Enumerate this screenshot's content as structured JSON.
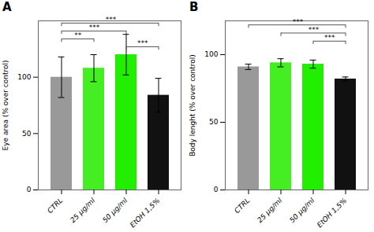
{
  "chart_data": [
    {
      "type": "bar",
      "title": "A",
      "ylabel": "Eye area (% over control)",
      "categories": [
        "CTRL",
        "25 μg/ml",
        "50 μg/ml",
        "EtOH 1,5%"
      ],
      "values": [
        100,
        108,
        120,
        84
      ],
      "errors": [
        18,
        12,
        18,
        15
      ],
      "colors": [
        "#999999",
        "#44ee22",
        "#22ee00",
        "#111111"
      ],
      "ylim": [
        0,
        150
      ],
      "yticks": [
        0,
        50,
        100
      ],
      "grid": false,
      "significance": [
        {
          "bars": [
            0,
            3
          ],
          "label": "***",
          "height": 148
        },
        {
          "bars": [
            0,
            2
          ],
          "label": "***",
          "height": 141
        },
        {
          "bars": [
            0,
            1
          ],
          "label": "**",
          "height": 134
        },
        {
          "bars": [
            2,
            3
          ],
          "label": "***",
          "height": 127
        }
      ]
    },
    {
      "type": "bar",
      "title": "B",
      "ylabel": "Body lenght (% over control)",
      "categories": [
        "CTRL",
        "25 μg/ml",
        "50 μg/ml",
        "EtOH 1,5%"
      ],
      "values": [
        91,
        94,
        93,
        82
      ],
      "errors": [
        2,
        3,
        3,
        1.5
      ],
      "colors": [
        "#999999",
        "#44ee22",
        "#22ee00",
        "#111111"
      ],
      "ylim": [
        0,
        125
      ],
      "yticks": [
        0,
        50,
        100
      ],
      "grid": false,
      "significance": [
        {
          "bars": [
            0,
            3
          ],
          "label": "***",
          "height": 122
        },
        {
          "bars": [
            1,
            3
          ],
          "label": "***",
          "height": 116
        },
        {
          "bars": [
            2,
            3
          ],
          "label": "***",
          "height": 110
        }
      ]
    }
  ]
}
